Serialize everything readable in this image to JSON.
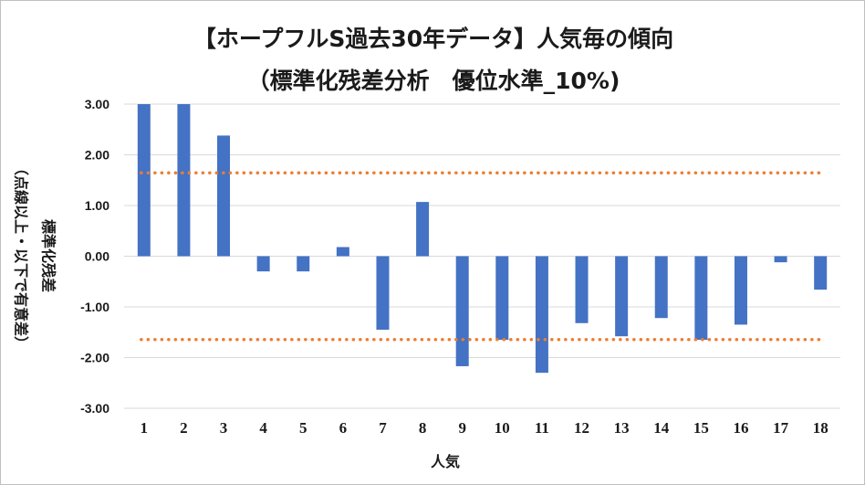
{
  "chart_data": {
    "type": "bar",
    "title": "【ホープフルS過去30年データ】人気毎の傾向",
    "subtitle": "（標準化残差分析　優位水準_10%)",
    "xlabel": "人気",
    "ylabel": "標準化残差",
    "ylabel_note": "（点線以上・以下で有意差）",
    "categories": [
      "1",
      "2",
      "3",
      "4",
      "5",
      "6",
      "7",
      "8",
      "9",
      "10",
      "11",
      "12",
      "13",
      "14",
      "15",
      "16",
      "17",
      "18"
    ],
    "values": [
      3.0,
      3.0,
      2.38,
      -0.3,
      -0.3,
      0.18,
      -1.45,
      1.07,
      -2.17,
      -1.65,
      -2.3,
      -1.32,
      -1.58,
      -1.22,
      -1.65,
      -1.35,
      -0.12,
      -0.66
    ],
    "ylim": [
      -3.0,
      3.0
    ],
    "yticks": [
      "3.00",
      "2.00",
      "1.00",
      "0.00",
      "-1.00",
      "-2.00",
      "-3.00"
    ],
    "thresholds": [
      1.645,
      -1.645
    ],
    "bar_color": "#4472c4",
    "threshold_color": "#ed7d31",
    "grid": true
  }
}
